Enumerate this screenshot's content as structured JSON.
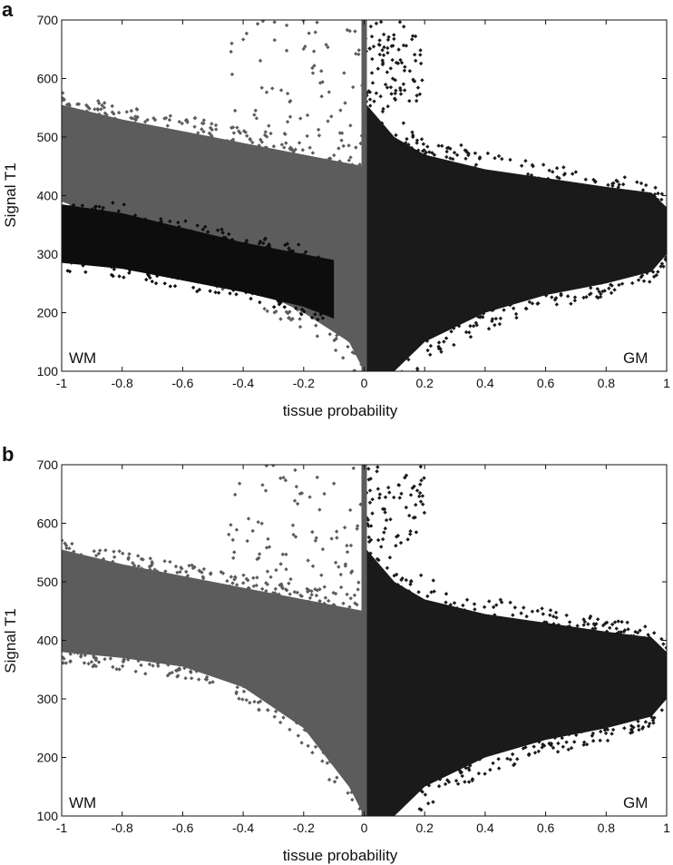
{
  "chart_data": [
    {
      "type": "scatter",
      "panel_label": "a",
      "xlabel": "tissue probability",
      "ylabel": "Signal T1",
      "xlim": [
        -1,
        1
      ],
      "ylim": [
        100,
        700
      ],
      "x_ticks": [
        "-1",
        "-0.8",
        "-0.6",
        "-0.4",
        "-0.2",
        "0",
        "0.2",
        "0.4",
        "0.6",
        "0.8",
        "1"
      ],
      "y_ticks": [
        "100",
        "200",
        "300",
        "400",
        "500",
        "600",
        "700"
      ],
      "annotations": {
        "left": "WM",
        "right": "GM"
      },
      "grid": false,
      "colors": {
        "wm": "#5c5c5c",
        "gm": "#1a1a1a",
        "dark_cluster": "#0d0d0d"
      },
      "series": [
        {
          "color": "#5c5c5c",
          "x_range": [
            -1,
            0
          ],
          "envelope": {
            "x": [
              -1,
              -0.8,
              -0.6,
              -0.4,
              -0.2,
              -0.05,
              0
            ],
            "upper": [
              555,
              530,
              510,
              490,
              470,
              455,
              450
            ],
            "lower": [
              390,
              350,
              300,
              250,
              200,
              150,
              100
            ]
          }
        },
        {
          "color": "#1a1a1a",
          "x_range": [
            0,
            1
          ],
          "envelope": {
            "x": [
              0,
              0.1,
              0.2,
              0.4,
              0.6,
              0.8,
              0.95,
              1
            ],
            "upper": [
              560,
              500,
              470,
              445,
              430,
              415,
              405,
              380
            ],
            "lower": [
              100,
              100,
              150,
              200,
              230,
              250,
              270,
              300
            ]
          }
        },
        {
          "color": "#0d0d0d",
          "x_range": [
            -1,
            -0.1
          ],
          "envelope": {
            "x": [
              -1,
              -0.8,
              -0.6,
              -0.4,
              -0.2,
              -0.1
            ],
            "upper": [
              385,
              370,
              345,
              320,
              300,
              290
            ],
            "lower": [
              285,
              275,
              255,
              235,
              210,
              190
            ]
          }
        }
      ]
    },
    {
      "type": "scatter",
      "panel_label": "b",
      "xlabel": "tissue probability",
      "ylabel": "Signal T1",
      "xlim": [
        -1,
        1
      ],
      "ylim": [
        100,
        700
      ],
      "x_ticks": [
        "-1",
        "-0.8",
        "-0.6",
        "-0.4",
        "-0.2",
        "0",
        "0.2",
        "0.4",
        "0.6",
        "0.8",
        "1"
      ],
      "y_ticks": [
        "100",
        "200",
        "300",
        "400",
        "500",
        "600",
        "700"
      ],
      "annotations": {
        "left": "WM",
        "right": "GM"
      },
      "grid": false,
      "colors": {
        "wm": "#5c5c5c",
        "gm": "#1a1a1a"
      },
      "series": [
        {
          "color": "#5c5c5c",
          "x_range": [
            -1,
            0
          ],
          "envelope": {
            "x": [
              -1,
              -0.8,
              -0.6,
              -0.4,
              -0.2,
              -0.05,
              0
            ],
            "upper": [
              555,
              530,
              510,
              490,
              470,
              455,
              450
            ],
            "lower": [
              380,
              370,
              355,
              320,
              250,
              150,
              100
            ]
          }
        },
        {
          "color": "#1a1a1a",
          "x_range": [
            0,
            1
          ],
          "envelope": {
            "x": [
              0,
              0.1,
              0.2,
              0.4,
              0.6,
              0.8,
              0.95,
              1
            ],
            "upper": [
              560,
              500,
              470,
              445,
              430,
              415,
              405,
              380
            ],
            "lower": [
              100,
              100,
              150,
              200,
              230,
              250,
              270,
              300
            ]
          }
        }
      ]
    }
  ]
}
